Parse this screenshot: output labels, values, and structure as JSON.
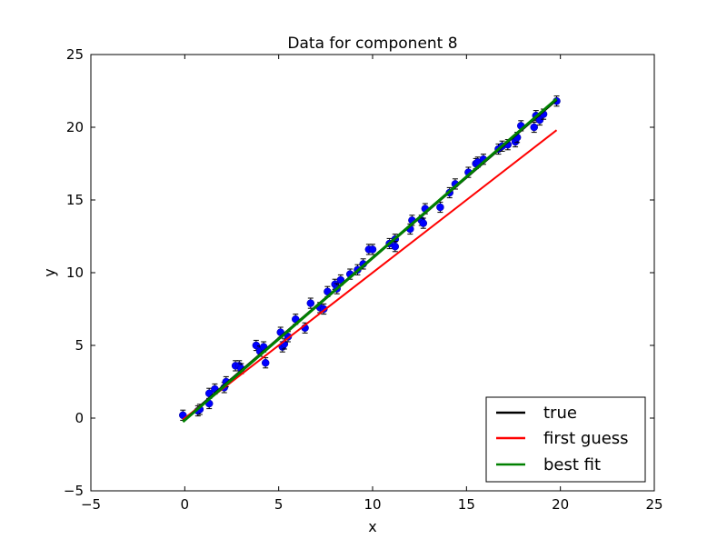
{
  "chart_data": {
    "type": "scatter",
    "title": "Data for component 8",
    "xlabel": "x",
    "ylabel": "y",
    "xlim": [
      -5,
      25
    ],
    "ylim": [
      -5,
      25
    ],
    "xticks": [
      -5,
      0,
      5,
      10,
      15,
      20,
      25
    ],
    "yticks": [
      -5,
      0,
      5,
      10,
      15,
      20,
      25
    ],
    "grid": false,
    "legend_position": "lower-right",
    "colors": {
      "true": "#000000",
      "first_guess": "#ff0000",
      "best_fit": "#008000",
      "data": "#0000ff"
    },
    "lines": [
      {
        "name": "true",
        "x": [
          -0.1,
          19.8
        ],
        "y": [
          -0.2,
          21.9
        ]
      },
      {
        "name": "first guess",
        "x": [
          -0.1,
          19.8
        ],
        "y": [
          -0.1,
          19.8
        ]
      },
      {
        "name": "best fit",
        "x": [
          -0.1,
          19.8
        ],
        "y": [
          -0.25,
          21.95
        ]
      }
    ],
    "scatter": {
      "yerr": 0.35,
      "points": [
        [
          -0.1,
          0.2
        ],
        [
          0.7,
          0.5
        ],
        [
          0.8,
          0.6
        ],
        [
          1.3,
          1.0
        ],
        [
          1.3,
          1.7
        ],
        [
          1.6,
          2.0
        ],
        [
          2.1,
          2.1
        ],
        [
          2.2,
          2.5
        ],
        [
          2.7,
          3.6
        ],
        [
          2.9,
          3.6
        ],
        [
          3.0,
          3.4
        ],
        [
          3.8,
          5.0
        ],
        [
          4.0,
          4.6
        ],
        [
          4.2,
          4.9
        ],
        [
          4.3,
          3.8
        ],
        [
          5.1,
          5.9
        ],
        [
          5.2,
          4.9
        ],
        [
          5.3,
          5.1
        ],
        [
          5.5,
          5.6
        ],
        [
          5.9,
          6.8
        ],
        [
          6.4,
          6.2
        ],
        [
          6.7,
          7.9
        ],
        [
          7.2,
          7.6
        ],
        [
          7.4,
          7.5
        ],
        [
          7.6,
          8.7
        ],
        [
          8.0,
          9.2
        ],
        [
          8.1,
          8.9
        ],
        [
          8.3,
          9.5
        ],
        [
          8.8,
          9.9
        ],
        [
          9.2,
          10.2
        ],
        [
          9.5,
          10.6
        ],
        [
          9.8,
          11.6
        ],
        [
          10.0,
          11.6
        ],
        [
          10.9,
          12.0
        ],
        [
          11.2,
          12.3
        ],
        [
          11.2,
          11.8
        ],
        [
          12.0,
          13.0
        ],
        [
          12.1,
          13.6
        ],
        [
          12.6,
          13.6
        ],
        [
          12.7,
          13.4
        ],
        [
          12.8,
          14.4
        ],
        [
          13.6,
          14.5
        ],
        [
          14.1,
          15.5
        ],
        [
          14.4,
          16.1
        ],
        [
          15.1,
          16.9
        ],
        [
          15.5,
          17.5
        ],
        [
          15.6,
          17.6
        ],
        [
          15.9,
          17.8
        ],
        [
          16.7,
          18.5
        ],
        [
          16.9,
          18.7
        ],
        [
          17.2,
          18.8
        ],
        [
          17.6,
          19.0
        ],
        [
          17.7,
          19.3
        ],
        [
          17.9,
          20.1
        ],
        [
          18.6,
          20.0
        ],
        [
          18.7,
          20.8
        ],
        [
          18.9,
          20.5
        ],
        [
          19.1,
          20.9
        ],
        [
          19.8,
          21.8
        ]
      ]
    },
    "legend": [
      {
        "label": "true",
        "color": "#000000"
      },
      {
        "label": "first guess",
        "color": "#ff0000"
      },
      {
        "label": "best fit",
        "color": "#008000"
      }
    ]
  }
}
